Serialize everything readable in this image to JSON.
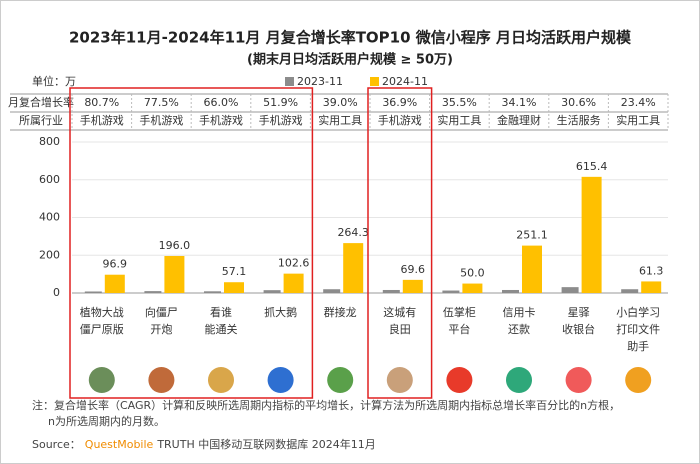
{
  "chart_data": {
    "type": "bar",
    "title": "2023年11月-2024年11月 月复合增长率TOP10 微信小程序 月日均活跃用户规模",
    "subtitle": "(期末月日均活跃用户规模 ≥ 50万)",
    "unit": "单位：万",
    "row_labels": [
      "月复合增长率",
      "所属行业"
    ],
    "growth": [
      "80.7%",
      "77.5%",
      "66.0%",
      "51.9%",
      "39.0%",
      "36.9%",
      "35.5%",
      "34.1%",
      "30.6%",
      "23.4%"
    ],
    "industry": [
      "手机游戏",
      "手机游戏",
      "手机游戏",
      "手机游戏",
      "实用工具",
      "手机游戏",
      "实用工具",
      "金融理财",
      "生活服务",
      "实用工具"
    ],
    "categories": [
      [
        "植物大战",
        "僵尸原版"
      ],
      [
        "向僵尸",
        "开炮"
      ],
      [
        "看谁",
        "能通关"
      ],
      [
        "抓大鹅"
      ],
      [
        "群接龙"
      ],
      [
        "这城有",
        "良田"
      ],
      [
        "伍掌柜",
        "平台"
      ],
      [
        "信用卡",
        "还款"
      ],
      [
        "星驿",
        "收银台"
      ],
      [
        "小白学习",
        "打印文件",
        "助手"
      ]
    ],
    "series": [
      {
        "name": "2023-11",
        "color": "#8c8c8c",
        "values": [
          8,
          10,
          9,
          15,
          20,
          16,
          13,
          16,
          31,
          20
        ]
      },
      {
        "name": "2024-11",
        "color": "#ffc000",
        "values": [
          96.9,
          196.0,
          57.1,
          102.6,
          264.3,
          69.6,
          50.0,
          251.1,
          615.4,
          61.3
        ],
        "value_labels": [
          "96.9",
          "196.0",
          "57.1",
          "102.6",
          "264.3",
          "69.6",
          "50.0",
          "251.1",
          "615.4",
          "61.3"
        ]
      }
    ],
    "ylim": [
      0,
      800
    ],
    "yticks": [
      0,
      200,
      400,
      600,
      800
    ],
    "grid": true,
    "note": [
      "注：复合增长率（CAGR）计算和反映所选周期内指标的平均增长，计算方法为所选周期内指标总增长率百分比的n方根，",
      "n为所选周期内的月数。"
    ],
    "source": {
      "label": "Source：",
      "brand": "QuestMobile",
      "text": "TRUTH 中国移动互联网数据库 2024年11月"
    }
  }
}
